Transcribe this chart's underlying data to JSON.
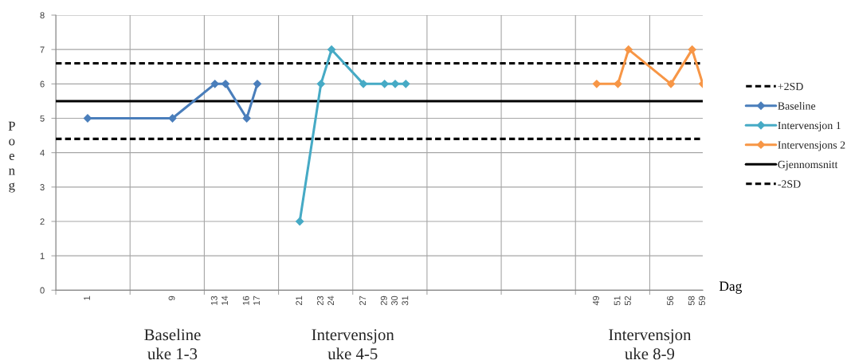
{
  "chart_data": {
    "type": "line",
    "xlabel": "Dag",
    "ylabel": "Poeng",
    "annotations": [
      "Baseline\nuke 1-3",
      "Intervensjon\nuke 4-5",
      "Intervensjon\nuke 8-9"
    ],
    "series": [
      {
        "name": "Baseline",
        "color": "#4a7ebb",
        "x": [
          1,
          9,
          13,
          14,
          16,
          17
        ],
        "values": [
          5,
          5,
          6,
          6,
          5,
          6
        ]
      },
      {
        "name": "Intervensjon 1",
        "color": "#46aac5",
        "x": [
          21,
          23,
          24,
          27,
          29,
          30,
          31
        ],
        "values": [
          2,
          6,
          7,
          6,
          6,
          6,
          6
        ]
      },
      {
        "name": "Intervensjons 2",
        "color": "#f79646",
        "x": [
          49,
          51,
          52,
          56,
          58,
          59
        ],
        "values": [
          6,
          6,
          7,
          6,
          7,
          6
        ]
      }
    ],
    "ref_lines": [
      {
        "axis": "y",
        "value": 6.6,
        "label": "+2SD",
        "color": "#000000",
        "line_style": "dashed"
      },
      {
        "axis": "y",
        "value": 5.5,
        "label": "Gjennomsnitt",
        "color": "#000000",
        "line_style": "solid"
      },
      {
        "axis": "y",
        "value": 4.4,
        "label": "-2SD",
        "color": "#000000",
        "line_style": "dashed"
      }
    ],
    "xlim": [
      -2,
      59
    ],
    "xticks": [
      {
        "value": -2,
        "label": null
      },
      1,
      {
        "value": 5,
        "label": null
      },
      9,
      {
        "value": 12,
        "label": null
      },
      13,
      14,
      16,
      17,
      {
        "value": 19,
        "label": null
      },
      21,
      23,
      24,
      {
        "value": 26,
        "label": null
      },
      27,
      29,
      30,
      31,
      {
        "value": 33,
        "label": null
      },
      {
        "value": 40,
        "label": null
      },
      {
        "value": 47,
        "label": null
      },
      49,
      51,
      52,
      {
        "value": 54,
        "label": null
      },
      56,
      58,
      59
    ],
    "ylim": [
      0,
      8
    ],
    "yticks": [
      0,
      1,
      2,
      3,
      4,
      5,
      6,
      7,
      8
    ],
    "grid": true,
    "legend": "right",
    "marker": "diamond",
    "line_style": "solid"
  }
}
